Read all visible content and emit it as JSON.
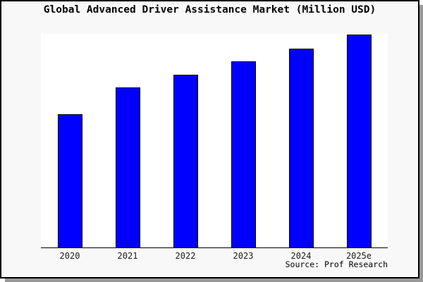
{
  "title": "Global Advanced Driver Assistance Market (Million USD)",
  "source": "Source: Prof Research",
  "colors": {
    "bar_fill": "#0000ff",
    "bar_border": "#000000",
    "canvas_background": "#f8f8f8",
    "plot_background": "#ffffff",
    "axis": "#000000",
    "frame_border": "#000000",
    "drop_shadow": "#999999"
  },
  "chart_data": {
    "type": "bar",
    "categories": [
      "2020",
      "2021",
      "2022",
      "2023",
      "2024",
      "2025e"
    ],
    "values": [
      62.5,
      74.8,
      80.9,
      87.0,
      93.0,
      99.6
    ],
    "title": "Global Advanced Driver Assistance Market (Million USD)",
    "xlabel": "",
    "ylabel": "",
    "ylim": [
      0,
      100
    ],
    "y_axis_labels_shown": false,
    "note": "No y-axis ticks shown in chart; values are relative bar heights as percent of plot height",
    "legend": "none",
    "grid": "off",
    "source": "Source: Prof Research"
  }
}
